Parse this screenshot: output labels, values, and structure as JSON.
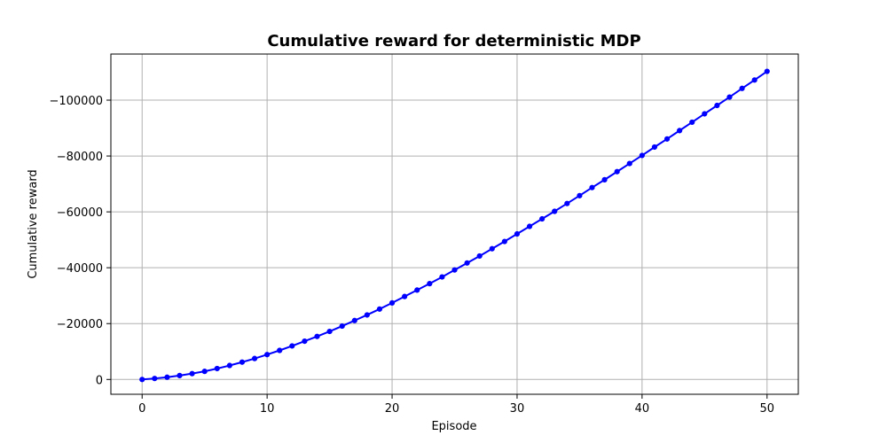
{
  "chart_data": {
    "type": "line",
    "title": "Cumulative reward for deterministic MDP",
    "xlabel": "Episode",
    "ylabel": "Cumulative reward",
    "xlim": [
      -2.5,
      52.5
    ],
    "ylim": [
      5300,
      -116500
    ],
    "y_inverted": true,
    "grid": true,
    "x_ticks": [
      0,
      10,
      20,
      30,
      40,
      50
    ],
    "x_tick_labels": [
      "0",
      "10",
      "20",
      "30",
      "40",
      "50"
    ],
    "y_ticks": [
      0,
      -20000,
      -40000,
      -60000,
      -80000,
      -100000
    ],
    "y_tick_labels": [
      "0",
      "−20000",
      "−40000",
      "−60000",
      "−80000",
      "−100000"
    ],
    "series": [
      {
        "color": "#0000ff",
        "marker": "circle",
        "x": [
          0,
          1,
          2,
          3,
          4,
          5,
          6,
          7,
          8,
          9,
          10,
          11,
          12,
          13,
          14,
          15,
          16,
          17,
          18,
          19,
          20,
          21,
          22,
          23,
          24,
          25,
          26,
          27,
          28,
          29,
          30,
          31,
          32,
          33,
          34,
          35,
          36,
          37,
          38,
          39,
          40,
          41,
          42,
          43,
          44,
          45,
          46,
          47,
          48,
          49,
          50
        ],
        "values": [
          0,
          -350,
          -800,
          -1400,
          -2100,
          -2900,
          -3900,
          -5000,
          -6200,
          -7500,
          -8900,
          -10400,
          -12000,
          -13700,
          -15400,
          -17200,
          -19100,
          -21100,
          -23100,
          -25200,
          -27400,
          -29700,
          -32000,
          -34300,
          -36700,
          -39200,
          -41700,
          -44200,
          -46800,
          -49400,
          -52100,
          -54800,
          -57500,
          -60200,
          -63000,
          -65800,
          -68700,
          -71500,
          -74400,
          -77300,
          -80200,
          -83200,
          -86100,
          -89100,
          -92100,
          -95100,
          -98100,
          -101100,
          -104200,
          -107200,
          -110300
        ]
      }
    ]
  }
}
